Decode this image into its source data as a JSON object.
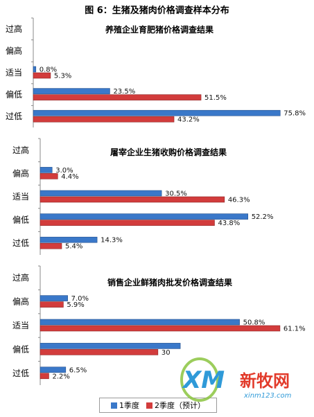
{
  "figure_title": "图 6：生猪及猪肉价格调查样本分布",
  "legend": {
    "s1_label": "1季度",
    "s2_label": "2季度（预计）",
    "s1_color": "#3a78c9",
    "s2_color": "#d23c3c"
  },
  "watermark": {
    "logo": "XM",
    "brand": "新牧网",
    "url": "xinm123.com"
  },
  "chart_data": [
    {
      "type": "bar",
      "orientation": "horizontal",
      "title": "养殖企业育肥猪价格调查结果",
      "categories": [
        "过高",
        "偏高",
        "适当",
        "偏低",
        "过低"
      ],
      "series": [
        {
          "name": "1季度",
          "values": [
            null,
            null,
            0.8,
            23.5,
            75.8
          ]
        },
        {
          "name": "2季度（预计）",
          "values": [
            null,
            null,
            5.3,
            51.5,
            43.2
          ]
        }
      ],
      "value_labels": {
        "s1": [
          "",
          "",
          "0.8%",
          "23.5%",
          "75.8%"
        ],
        "s2": [
          "",
          "",
          "5.3%",
          "51.5%",
          "43.2%"
        ]
      },
      "xlim": [
        0,
        80
      ]
    },
    {
      "type": "bar",
      "orientation": "horizontal",
      "title": "屠宰企业生猪收购价格调查结果",
      "categories": [
        "过高",
        "偏高",
        "适当",
        "偏低",
        "过低"
      ],
      "series": [
        {
          "name": "1季度",
          "values": [
            null,
            3.0,
            30.5,
            52.2,
            14.3
          ]
        },
        {
          "name": "2季度（预计）",
          "values": [
            null,
            4.4,
            46.3,
            43.8,
            5.4
          ]
        }
      ],
      "value_labels": {
        "s1": [
          "",
          "3.0%",
          "30.5%",
          "52.2%",
          "14.3%"
        ],
        "s2": [
          "",
          "4.4%",
          "46.3%",
          "43.8%",
          "5.4%"
        ]
      },
      "xlim": [
        0,
        58
      ]
    },
    {
      "type": "bar",
      "orientation": "horizontal",
      "title": "销售企业鲜猪肉批发价格调查结果",
      "categories": [
        "过高",
        "偏高",
        "适当",
        "偏低",
        "过低"
      ],
      "series": [
        {
          "name": "1季度",
          "values": [
            null,
            7.0,
            50.8,
            35.7,
            6.5
          ]
        },
        {
          "name": "2季度（预计）",
          "values": [
            null,
            5.9,
            61.1,
            30.0,
            2.2
          ]
        }
      ],
      "value_labels": {
        "s1": [
          "",
          "7.0%",
          "50.8%",
          "",
          "6.5%"
        ],
        "s2": [
          "",
          "5.9%",
          "61.1%",
          "30",
          "2.2%"
        ]
      },
      "xlim": [
        0,
        65
      ]
    }
  ]
}
